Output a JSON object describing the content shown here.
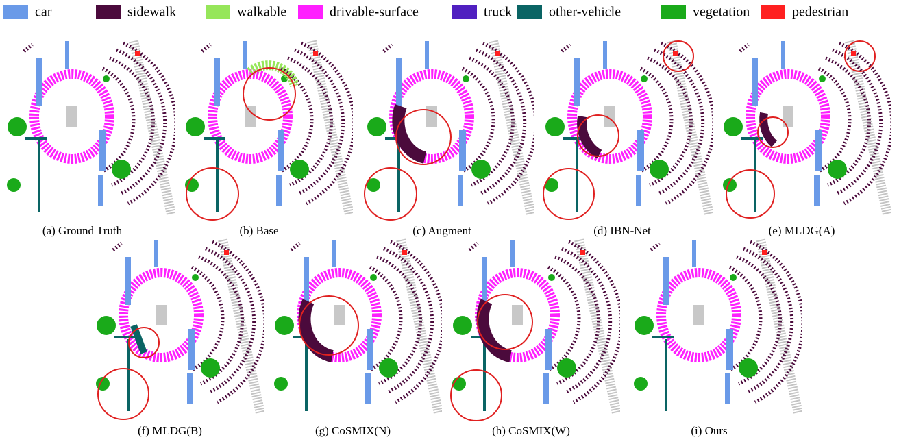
{
  "legend": [
    {
      "label": "car",
      "color": "#6a9ae8"
    },
    {
      "label": "sidewalk",
      "color": "#4b0a3c"
    },
    {
      "label": "walkable",
      "color": "#96e65a"
    },
    {
      "label": "drivable-surface",
      "color": "#ff1fff"
    },
    {
      "label": "truck",
      "color": "#5020c0"
    },
    {
      "label": "other-vehicle",
      "color": "#0a6464"
    },
    {
      "label": "vegetation",
      "color": "#1aaa1a"
    },
    {
      "label": "pedestrian",
      "color": "#ff2020"
    }
  ],
  "panels": [
    {
      "caption": "(a) Ground Truth"
    },
    {
      "caption": "(b) Base"
    },
    {
      "caption": "(c) Augment"
    },
    {
      "caption": "(d) IBN-Net"
    },
    {
      "caption": "(e) MLDG(A)"
    },
    {
      "caption": "(f) MLDG(B)"
    },
    {
      "caption": "(g) CoSMIX(N)"
    },
    {
      "caption": "(h) CoSMIX(W)"
    },
    {
      "caption": "(i) Ours"
    }
  ]
}
